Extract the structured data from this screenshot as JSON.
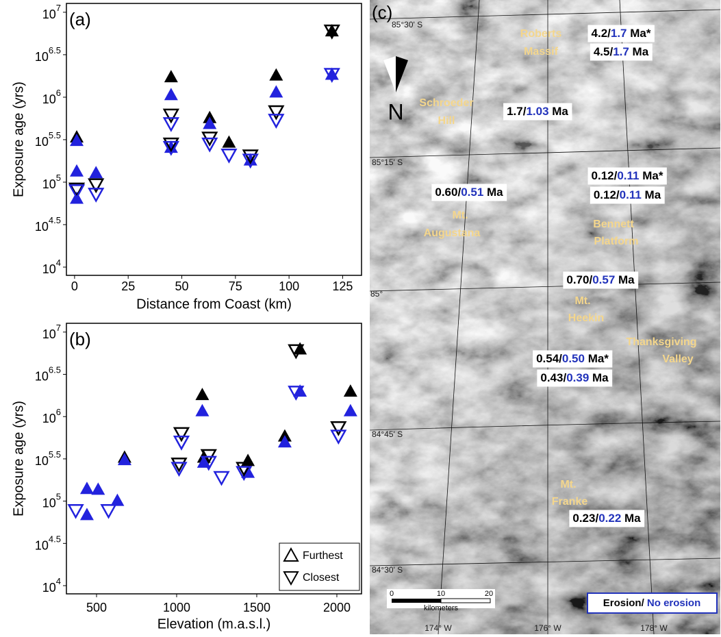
{
  "chart_data": [
    {
      "type": "scatter",
      "label": "(a)",
      "ylabel": "Exposure age (yrs)",
      "xlabel": "Distance from Coast (km)",
      "log_y": true,
      "xlim": [
        -3.8,
        133.8
      ],
      "xticks": [
        0,
        25,
        50,
        75,
        100,
        125
      ],
      "ylim": [
        8000,
        12700000
      ],
      "yticks": [
        {
          "value": 10000,
          "label": "10",
          "sup": "4"
        },
        {
          "value": 31623,
          "label": "10",
          "sup": "4.5"
        },
        {
          "value": 100000,
          "label": "10",
          "sup": "5"
        },
        {
          "value": 316228,
          "label": "10",
          "sup": "5.5"
        },
        {
          "value": 1000000,
          "label": "10",
          "sup": "6"
        },
        {
          "value": 3162278,
          "label": "10",
          "sup": "6.5"
        },
        {
          "value": 10000000,
          "label": "10",
          "sup": "7"
        }
      ],
      "series": [
        {
          "marker": "triangle-up",
          "filled": true,
          "x": [
            1,
            1,
            1,
            1,
            10,
            45,
            45,
            45,
            63,
            63,
            72,
            82,
            94,
            94,
            120,
            120
          ],
          "values": [
            340000,
            309000,
            135000,
            64600,
            129000,
            1740000,
            1070000,
            257000,
            575000,
            490000,
            295000,
            182000,
            1820000,
            1150000,
            6030000,
            1860000
          ],
          "colors": [
            "#000000",
            "#2222dd",
            "#2222dd",
            "#2222dd",
            "#2222dd",
            "#000000",
            "#2222dd",
            "#2222dd",
            "#000000",
            "#2222dd",
            "#000000",
            "#2222dd",
            "#000000",
            "#2222dd",
            "#000000",
            "#2222dd"
          ]
        },
        {
          "marker": "triangle-down",
          "filled": false,
          "x": [
            1,
            1,
            10,
            10,
            45,
            45,
            45,
            45,
            63,
            63,
            72,
            82,
            82,
            94,
            94,
            120,
            120
          ],
          "values": [
            83200,
            79400,
            93300,
            72400,
            617000,
            490000,
            282000,
            257000,
            331000,
            282000,
            209000,
            204000,
            182000,
            676000,
            537000,
            6030000,
            1860000
          ],
          "colors": [
            "#000000",
            "#2222dd",
            "#000000",
            "#2222dd",
            "#000000",
            "#2222dd",
            "#000000",
            "#2222dd",
            "#000000",
            "#2222dd",
            "#2222dd",
            "#000000",
            "#2222dd",
            "#000000",
            "#2222dd",
            "#000000",
            "#2222dd"
          ]
        }
      ]
    },
    {
      "type": "scatter",
      "label": "(b)",
      "ylabel": "Exposure age (yrs)",
      "xlabel": "Elevation (m.a.s.l.)",
      "log_y": true,
      "xlim": [
        312,
        2154
      ],
      "xticks": [
        500,
        1000,
        1500,
        2000
      ],
      "ylim": [
        8000,
        12700000
      ],
      "yticks": [
        {
          "value": 10000,
          "label": "10",
          "sup": "4"
        },
        {
          "value": 31623,
          "label": "10",
          "sup": "4.5"
        },
        {
          "value": 100000,
          "label": "10",
          "sup": "5"
        },
        {
          "value": 316228,
          "label": "10",
          "sup": "5.5"
        },
        {
          "value": 1000000,
          "label": "10",
          "sup": "6"
        },
        {
          "value": 3162278,
          "label": "10",
          "sup": "6.5"
        },
        {
          "value": 10000000,
          "label": "10",
          "sup": "7"
        }
      ],
      "legend": "lower right",
      "series": [
        {
          "name": "Furthest",
          "marker": "triangle-up",
          "filled": true,
          "x": [
            440,
            440,
            510,
            630,
            675,
            675,
            1160,
            1160,
            1170,
            1170,
            1445,
            1445,
            1675,
            1675,
            1770,
            1770,
            2085,
            2085
          ],
          "values": [
            69200,
            141000,
            138000,
            102000,
            331000,
            309000,
            1820000,
            1170000,
            331000,
            288000,
            302000,
            219000,
            589000,
            501000,
            6310000,
            2000000,
            2000000,
            1170000
          ],
          "colors": [
            "#2222dd",
            "#2222dd",
            "#2222dd",
            "#2222dd",
            "#000000",
            "#2222dd",
            "#000000",
            "#2222dd",
            "#000000",
            "#2222dd",
            "#000000",
            "#2222dd",
            "#000000",
            "#2222dd",
            "#000000",
            "#2222dd",
            "#000000",
            "#2222dd"
          ]
        },
        {
          "name": "Closest",
          "marker": "triangle-down",
          "filled": false,
          "x": [
            370,
            575,
            1015,
            1015,
            1030,
            1030,
            1200,
            1200,
            1280,
            1420,
            1420,
            1745,
            1745,
            2010,
            2010
          ],
          "values": [
            77600,
            77600,
            275000,
            245000,
            631000,
            501000,
            347000,
            288000,
            191000,
            245000,
            219000,
            6030000,
            1950000,
            741000,
            589000
          ],
          "colors": [
            "#2222dd",
            "#2222dd",
            "#000000",
            "#2222dd",
            "#000000",
            "#2222dd",
            "#000000",
            "#2222dd",
            "#2222dd",
            "#000000",
            "#2222dd",
            "#000000",
            "#2222dd",
            "#000000",
            "#2222dd"
          ]
        }
      ]
    }
  ],
  "map": {
    "panel_label": "(c)",
    "north": "N",
    "latitudes": [
      "85°30' S",
      "85°15' S",
      "85°",
      "84°45' S",
      "84°30' S"
    ],
    "longitudes": [
      "174° W",
      "176° W",
      "178° W"
    ],
    "place_color": "#f4d68c",
    "erosion_color": "#000000",
    "no_erosion_color": "#2233bb",
    "places": [
      {
        "lines": [
          "Roberts",
          "Massif"
        ]
      },
      {
        "lines": [
          "Schroeder",
          "Hill"
        ]
      },
      {
        "lines": [
          "Mt.",
          "Augustana"
        ]
      },
      {
        "lines": [
          "Bennett",
          "Platform"
        ]
      },
      {
        "lines": [
          "Mt.",
          "Heekin"
        ]
      },
      {
        "lines": [
          "Thanksgiving",
          "Valley"
        ]
      },
      {
        "lines": [
          "Mt.",
          "Franke"
        ]
      }
    ],
    "age_labels": [
      [
        "4.2/",
        "1.7",
        " Ma*"
      ],
      [
        "4.5/",
        "1.7",
        " Ma"
      ],
      [
        "1.7/",
        "1.03",
        " Ma"
      ],
      [
        "0.60/",
        "0.51",
        " Ma"
      ],
      [
        "0.12/",
        "0.11",
        " Ma*"
      ],
      [
        "0.12/",
        "0.11",
        " Ma"
      ],
      [
        "0.70/",
        "0.57",
        " Ma"
      ],
      [
        "0.54/",
        "0.50",
        " Ma*"
      ],
      [
        "0.43/",
        "0.39",
        " Ma"
      ],
      [
        "0.23/",
        "0.22",
        " Ma"
      ]
    ],
    "scale_bar": {
      "ticks": [
        "0",
        "10",
        "20"
      ],
      "unit": "kilometers"
    },
    "legend": {
      "erosion": "Erosion/",
      "no_erosion": " No erosion"
    }
  }
}
